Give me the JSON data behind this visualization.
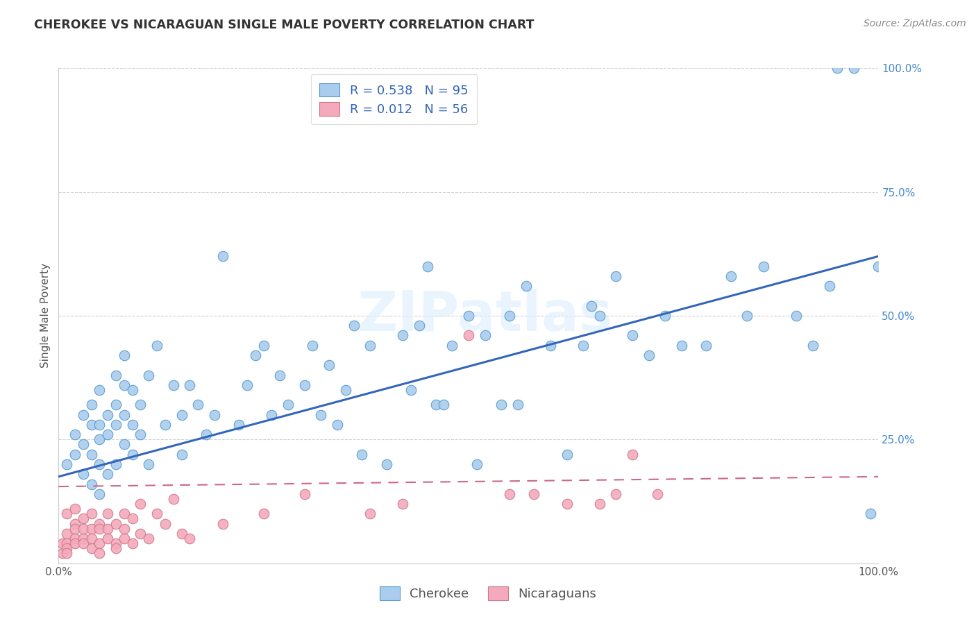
{
  "title": "CHEROKEE VS NICARAGUAN SINGLE MALE POVERTY CORRELATION CHART",
  "source": "Source: ZipAtlas.com",
  "ylabel": "Single Male Poverty",
  "legend_cherokee_label": "Cherokee",
  "legend_nicaraguan_label": "Nicaraguans",
  "cherokee_R": "0.538",
  "cherokee_N": "95",
  "nicaraguan_R": "0.012",
  "nicaraguan_N": "56",
  "cherokee_color": "#aaccee",
  "cherokee_edge_color": "#5599cc",
  "nicaraguan_color": "#f4aabc",
  "nicaraguan_edge_color": "#cc7788",
  "cherokee_line_color": "#3366bb",
  "nicaraguan_line_color": "#cc6688",
  "watermark": "ZIPatlas",
  "background_color": "#ffffff",
  "grid_color": "#cccccc",
  "title_color": "#333333",
  "axis_label_color": "#555555",
  "yaxis_tick_color": "#4488cc",
  "legend_R_N_color": "#3366bb",
  "cherokee_scatter_x": [
    0.01,
    0.02,
    0.02,
    0.03,
    0.03,
    0.03,
    0.04,
    0.04,
    0.04,
    0.04,
    0.05,
    0.05,
    0.05,
    0.05,
    0.05,
    0.06,
    0.06,
    0.06,
    0.07,
    0.07,
    0.07,
    0.07,
    0.08,
    0.08,
    0.08,
    0.08,
    0.09,
    0.09,
    0.09,
    0.1,
    0.1,
    0.11,
    0.11,
    0.12,
    0.13,
    0.14,
    0.15,
    0.15,
    0.16,
    0.17,
    0.18,
    0.19,
    0.2,
    0.22,
    0.23,
    0.24,
    0.25,
    0.26,
    0.27,
    0.28,
    0.3,
    0.31,
    0.32,
    0.33,
    0.34,
    0.35,
    0.36,
    0.37,
    0.38,
    0.4,
    0.42,
    0.43,
    0.44,
    0.45,
    0.46,
    0.47,
    0.48,
    0.5,
    0.51,
    0.52,
    0.54,
    0.55,
    0.56,
    0.57,
    0.6,
    0.62,
    0.64,
    0.65,
    0.66,
    0.68,
    0.7,
    0.72,
    0.74,
    0.76,
    0.79,
    0.82,
    0.84,
    0.86,
    0.9,
    0.92,
    0.94,
    0.95,
    0.97,
    0.99,
    1.0
  ],
  "cherokee_scatter_y": [
    0.2,
    0.22,
    0.26,
    0.18,
    0.24,
    0.3,
    0.16,
    0.22,
    0.28,
    0.32,
    0.14,
    0.2,
    0.25,
    0.28,
    0.35,
    0.18,
    0.26,
    0.3,
    0.2,
    0.28,
    0.32,
    0.38,
    0.24,
    0.3,
    0.36,
    0.42,
    0.22,
    0.28,
    0.35,
    0.26,
    0.32,
    0.2,
    0.38,
    0.44,
    0.28,
    0.36,
    0.22,
    0.3,
    0.36,
    0.32,
    0.26,
    0.3,
    0.62,
    0.28,
    0.36,
    0.42,
    0.44,
    0.3,
    0.38,
    0.32,
    0.36,
    0.44,
    0.3,
    0.4,
    0.28,
    0.35,
    0.48,
    0.22,
    0.44,
    0.2,
    0.46,
    0.35,
    0.48,
    0.6,
    0.32,
    0.32,
    0.44,
    0.5,
    0.2,
    0.46,
    0.32,
    0.5,
    0.32,
    0.56,
    0.44,
    0.22,
    0.44,
    0.52,
    0.5,
    0.58,
    0.46,
    0.42,
    0.5,
    0.44,
    0.44,
    0.58,
    0.5,
    0.6,
    0.5,
    0.44,
    0.56,
    1.0,
    1.0,
    0.1,
    0.6
  ],
  "nicaraguan_scatter_x": [
    0.005,
    0.005,
    0.01,
    0.01,
    0.01,
    0.01,
    0.01,
    0.02,
    0.02,
    0.02,
    0.02,
    0.02,
    0.03,
    0.03,
    0.03,
    0.03,
    0.04,
    0.04,
    0.04,
    0.04,
    0.05,
    0.05,
    0.05,
    0.05,
    0.06,
    0.06,
    0.06,
    0.07,
    0.07,
    0.07,
    0.08,
    0.08,
    0.08,
    0.09,
    0.09,
    0.1,
    0.1,
    0.11,
    0.12,
    0.13,
    0.14,
    0.15,
    0.16,
    0.2,
    0.25,
    0.3,
    0.38,
    0.42,
    0.5,
    0.55,
    0.58,
    0.62,
    0.66,
    0.68,
    0.7,
    0.73
  ],
  "nicaraguan_scatter_y": [
    0.04,
    0.02,
    0.06,
    0.04,
    0.03,
    0.1,
    0.02,
    0.05,
    0.08,
    0.07,
    0.04,
    0.11,
    0.05,
    0.09,
    0.07,
    0.04,
    0.03,
    0.07,
    0.1,
    0.05,
    0.08,
    0.04,
    0.07,
    0.02,
    0.1,
    0.07,
    0.05,
    0.04,
    0.08,
    0.03,
    0.07,
    0.1,
    0.05,
    0.09,
    0.04,
    0.06,
    0.12,
    0.05,
    0.1,
    0.08,
    0.13,
    0.06,
    0.05,
    0.08,
    0.1,
    0.14,
    0.1,
    0.12,
    0.46,
    0.14,
    0.14,
    0.12,
    0.12,
    0.14,
    0.22,
    0.14
  ],
  "cherokee_trend_x0": 0.0,
  "cherokee_trend_x1": 1.0,
  "cherokee_trend_y0": 0.175,
  "cherokee_trend_y1": 0.62,
  "nicaraguan_trend_x0": 0.0,
  "nicaraguan_trend_x1": 1.0,
  "nicaraguan_trend_y0": 0.155,
  "nicaraguan_trend_y1": 0.175,
  "xlim": [
    0.0,
    1.0
  ],
  "ylim": [
    0.0,
    1.0
  ],
  "ytick_positions": [
    0.25,
    0.5,
    0.75,
    1.0
  ],
  "ytick_labels": [
    "25.0%",
    "50.0%",
    "75.0%",
    "100.0%"
  ],
  "xtick_positions": [
    0.0,
    1.0
  ],
  "xtick_labels": [
    "0.0%",
    "100.0%"
  ]
}
